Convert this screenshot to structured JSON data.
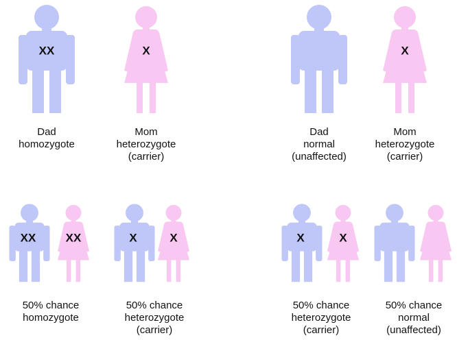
{
  "left": {
    "parents": [
      {
        "marker": "XX",
        "caption": [
          "Dad",
          "homozygote"
        ]
      },
      {
        "marker": "X",
        "caption": [
          "Mom",
          "heterozygote",
          "(carrier)"
        ]
      }
    ],
    "children": [
      {
        "markers": [
          "XX",
          "XX"
        ],
        "caption": [
          "50% chance",
          "homozygote"
        ]
      },
      {
        "markers": [
          "X",
          "X"
        ],
        "caption": [
          "50% chance",
          "heterozygote",
          "(carrier)"
        ]
      }
    ]
  },
  "right": {
    "parents": [
      {
        "caption": [
          "Dad",
          "normal",
          "(unaffected)"
        ]
      },
      {
        "marker": "X",
        "caption": [
          "Mom",
          "heterozygote",
          "(carrier)"
        ]
      }
    ],
    "children": [
      {
        "markers": [
          "X",
          "X"
        ],
        "caption": [
          "50% chance",
          "heterozygote",
          "(carrier)"
        ]
      },
      {
        "caption": [
          "50% chance",
          "normal",
          "(unaffected)"
        ]
      }
    ]
  }
}
